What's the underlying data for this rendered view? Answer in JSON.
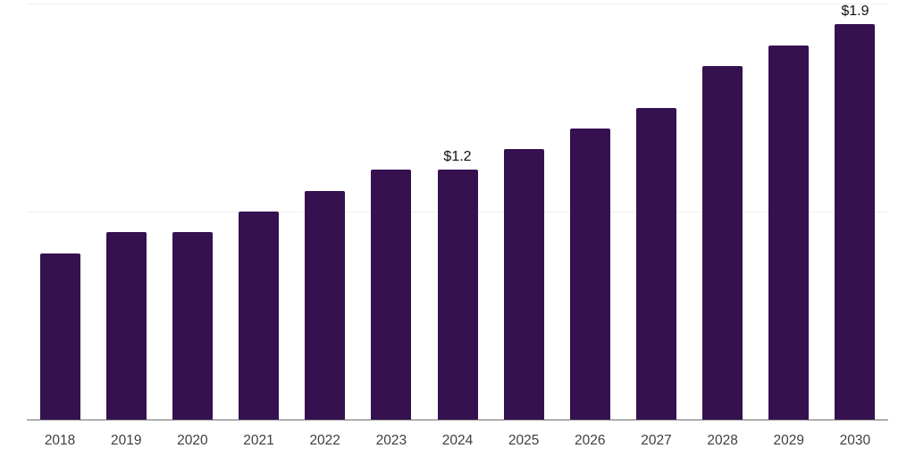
{
  "chart_data": {
    "type": "bar",
    "title": "",
    "xlabel": "",
    "ylabel": "",
    "categories": [
      "2018",
      "2019",
      "2020",
      "2021",
      "2022",
      "2023",
      "2024",
      "2025",
      "2026",
      "2027",
      "2028",
      "2029",
      "2030"
    ],
    "values": [
      0.8,
      0.9,
      0.9,
      1.0,
      1.1,
      1.2,
      1.2,
      1.3,
      1.4,
      1.5,
      1.7,
      1.8,
      1.9
    ],
    "value_prefix": "$",
    "ylim": [
      0,
      2
    ],
    "gridlines_y": [
      1,
      2
    ],
    "grid": "horizontal-only",
    "legend": "none",
    "annotations": [
      {
        "category": "2024",
        "text": "$1.2"
      },
      {
        "category": "2030",
        "text": "$1.9"
      }
    ],
    "colors": {
      "bar": "#35114F",
      "grid_line": "#F0F0F0",
      "axis_line": "#6E6E6E",
      "tick_label": "#3F3F3F",
      "annotation_text": "#111111",
      "background": "#FFFFFF"
    }
  }
}
